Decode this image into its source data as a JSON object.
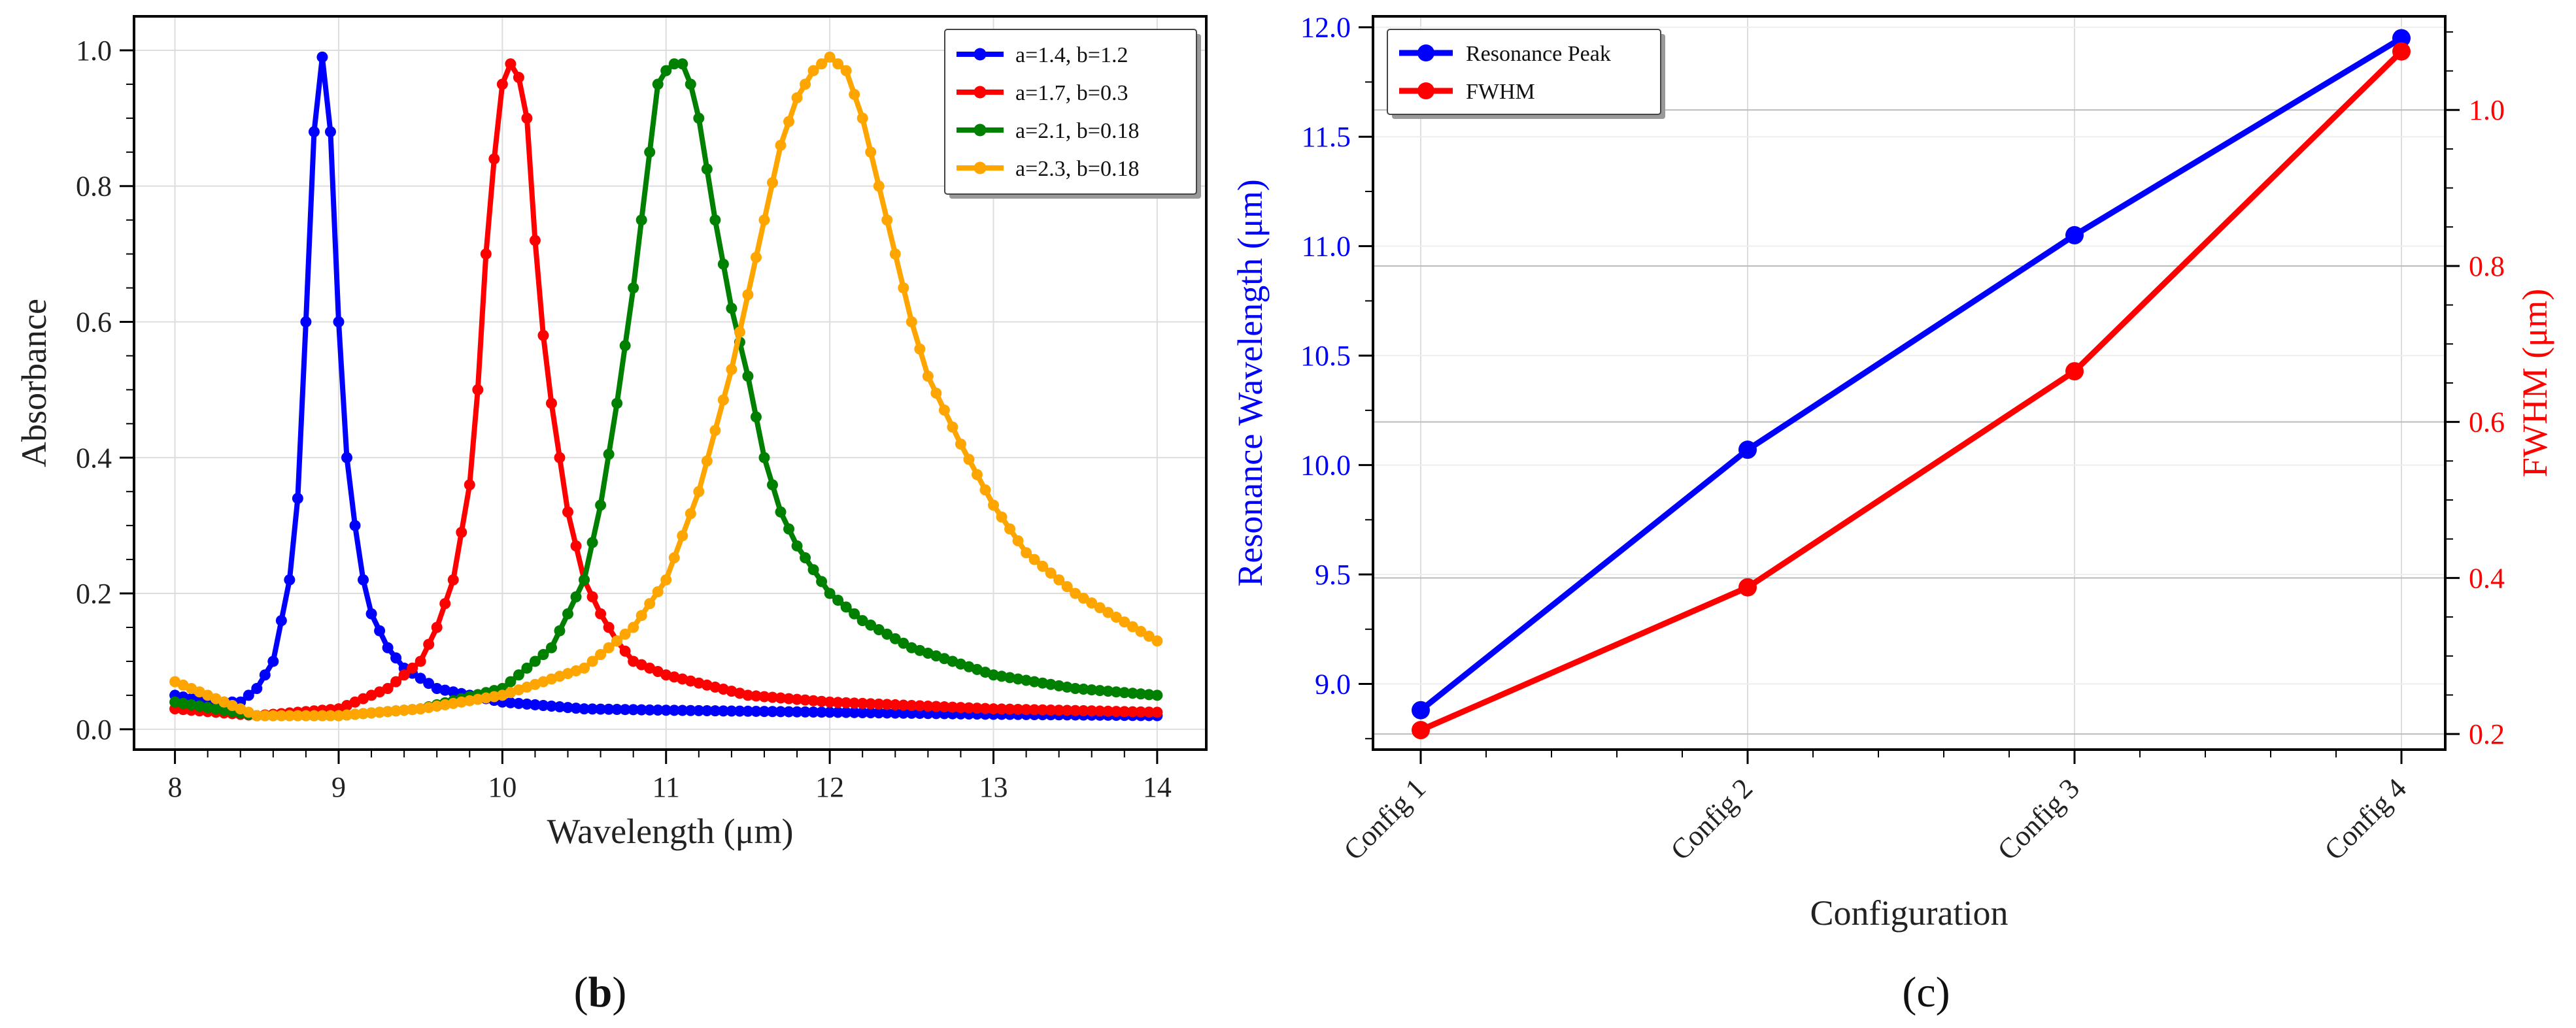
{
  "colors": {
    "blue": "#0000ff",
    "red": "#ff0000",
    "green": "#008000",
    "orange": "#ffa500",
    "grid": "#dddddd",
    "hgrid": "#bbbbbb"
  },
  "panels": {
    "b_label": "(b)",
    "b_letter": "b",
    "c_label": "(c)",
    "c_letter": "c"
  },
  "chart_data": [
    {
      "id": "b",
      "type": "line",
      "title": "",
      "xlabel": "Wavelength (μm)",
      "ylabel": "Absorbance",
      "xlim": [
        7.75,
        14.3
      ],
      "ylim": [
        -0.03,
        1.05
      ],
      "x_ticks": [
        8,
        9,
        10,
        11,
        12,
        13,
        14
      ],
      "x_tick_labels": [
        "8",
        "9",
        "10",
        "11",
        "12",
        "13",
        "14"
      ],
      "y_ticks": [
        0.0,
        0.2,
        0.4,
        0.6,
        0.8,
        1.0
      ],
      "y_tick_labels": [
        "0.0",
        "0.2",
        "0.4",
        "0.6",
        "0.8",
        "1.0"
      ],
      "grid": true,
      "legend_position": "top-right",
      "series": [
        {
          "name": "a=1.4, b=1.2",
          "color": "#0000ff",
          "x": [
            8.0,
            8.2,
            8.4,
            8.5,
            8.6,
            8.7,
            8.75,
            8.8,
            8.85,
            8.9,
            8.95,
            9.0,
            9.05,
            9.1,
            9.15,
            9.2,
            9.3,
            9.4,
            9.6,
            10.0,
            10.5,
            11.0,
            12.0,
            13.0,
            14.0
          ],
          "values": [
            0.05,
            0.04,
            0.04,
            0.06,
            0.1,
            0.22,
            0.34,
            0.6,
            0.88,
            0.99,
            0.88,
            0.6,
            0.4,
            0.3,
            0.22,
            0.17,
            0.12,
            0.09,
            0.06,
            0.04,
            0.03,
            0.028,
            0.025,
            0.022,
            0.02
          ]
        },
        {
          "name": "a=1.7, b=0.3",
          "color": "#ff0000",
          "x": [
            8.0,
            8.5,
            9.0,
            9.3,
            9.5,
            9.6,
            9.7,
            9.8,
            9.85,
            9.9,
            9.95,
            10.0,
            10.05,
            10.1,
            10.15,
            10.2,
            10.25,
            10.3,
            10.35,
            10.4,
            10.45,
            10.5,
            10.6,
            10.7,
            10.8,
            11.0,
            11.5,
            12.0,
            13.0,
            14.0
          ],
          "values": [
            0.03,
            0.02,
            0.03,
            0.06,
            0.1,
            0.15,
            0.22,
            0.36,
            0.5,
            0.7,
            0.84,
            0.95,
            0.98,
            0.96,
            0.9,
            0.72,
            0.58,
            0.48,
            0.4,
            0.32,
            0.27,
            0.22,
            0.17,
            0.13,
            0.1,
            0.08,
            0.05,
            0.04,
            0.03,
            0.025
          ]
        },
        {
          "name": "a=2.1, b=0.18",
          "color": "#008000",
          "x": [
            8.0,
            8.5,
            9.0,
            9.5,
            10.0,
            10.3,
            10.5,
            10.6,
            10.7,
            10.8,
            10.9,
            10.95,
            11.0,
            11.05,
            11.1,
            11.15,
            11.2,
            11.3,
            11.4,
            11.5,
            11.6,
            11.7,
            11.8,
            12.0,
            12.2,
            12.5,
            13.0,
            13.5,
            14.0
          ],
          "values": [
            0.04,
            0.02,
            0.02,
            0.03,
            0.06,
            0.12,
            0.22,
            0.33,
            0.48,
            0.65,
            0.85,
            0.95,
            0.97,
            0.98,
            0.98,
            0.95,
            0.9,
            0.75,
            0.62,
            0.52,
            0.4,
            0.32,
            0.27,
            0.2,
            0.16,
            0.12,
            0.08,
            0.06,
            0.05
          ]
        },
        {
          "name": "a=2.3, b=0.18",
          "color": "#ffa500",
          "x": [
            8.0,
            8.5,
            9.0,
            9.5,
            10.0,
            10.5,
            10.8,
            11.0,
            11.2,
            11.4,
            11.5,
            11.6,
            11.7,
            11.8,
            11.9,
            12.0,
            12.05,
            12.1,
            12.2,
            12.3,
            12.4,
            12.5,
            12.6,
            12.8,
            13.0,
            13.2,
            13.5,
            14.0
          ],
          "values": [
            0.07,
            0.02,
            0.02,
            0.03,
            0.05,
            0.09,
            0.15,
            0.22,
            0.35,
            0.53,
            0.64,
            0.75,
            0.86,
            0.93,
            0.97,
            0.99,
            0.98,
            0.97,
            0.9,
            0.8,
            0.7,
            0.6,
            0.52,
            0.42,
            0.33,
            0.26,
            0.2,
            0.13
          ]
        }
      ]
    },
    {
      "id": "c",
      "type": "line",
      "title": "",
      "xlabel": "Configuration",
      "ylabel": "Resonance Wavelength (μm)",
      "ylabel_right": "FWHM (μm)",
      "categories": [
        "Config 1",
        "Config 2",
        "Config 3",
        "Config 4"
      ],
      "ylim": [
        8.7,
        12.05
      ],
      "ylim_right": [
        0.18,
        1.12
      ],
      "y_ticks": [
        9.0,
        9.5,
        10.0,
        10.5,
        11.0,
        11.5,
        12.0
      ],
      "y_tick_labels": [
        "9.0",
        "9.5",
        "10.0",
        "10.5",
        "11.0",
        "11.5",
        "12.0"
      ],
      "y_ticks_right": [
        0.2,
        0.4,
        0.6,
        0.8,
        1.0
      ],
      "y_tick_labels_right": [
        "0.2",
        "0.4",
        "0.6",
        "0.8",
        "1.0"
      ],
      "grid": true,
      "legend_position": "top-left",
      "series": [
        {
          "name": "Resonance Peak",
          "axis": "left",
          "color": "#0000ff",
          "values": [
            8.88,
            10.07,
            11.05,
            11.95
          ]
        },
        {
          "name": "FWHM",
          "axis": "right",
          "color": "#ff0000",
          "values": [
            0.205,
            0.388,
            0.665,
            1.075
          ]
        }
      ]
    }
  ]
}
